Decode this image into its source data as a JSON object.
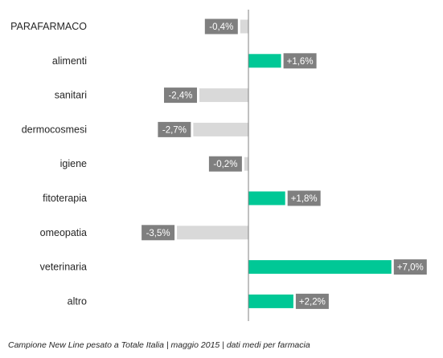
{
  "chart_data": {
    "type": "bar",
    "orientation": "horizontal",
    "categories": [
      "PARAFARMACO",
      "alimenti",
      "sanitari",
      "dermocosmesi",
      "igiene",
      "fitoterapia",
      "omeopatia",
      "veterinaria",
      "altro"
    ],
    "values": [
      -0.4,
      1.6,
      -2.4,
      -2.7,
      -0.2,
      1.8,
      -3.5,
      7.0,
      2.2
    ],
    "value_labels": [
      "-0,4%",
      "+1,6%",
      "-2,4%",
      "-2,7%",
      "-0,2%",
      "+1,8%",
      "-3,5%",
      "+7,0%",
      "+2,2%"
    ],
    "colors": {
      "positive": "#00c896",
      "negative": "#d9d9d9",
      "label_box": "#7f7f7f",
      "axis": "#808080"
    },
    "grid": false,
    "legend": "none"
  },
  "footnote": "Campione New Line pesato a Totale Italia | maggio 2015 | dati medi per farmacia"
}
